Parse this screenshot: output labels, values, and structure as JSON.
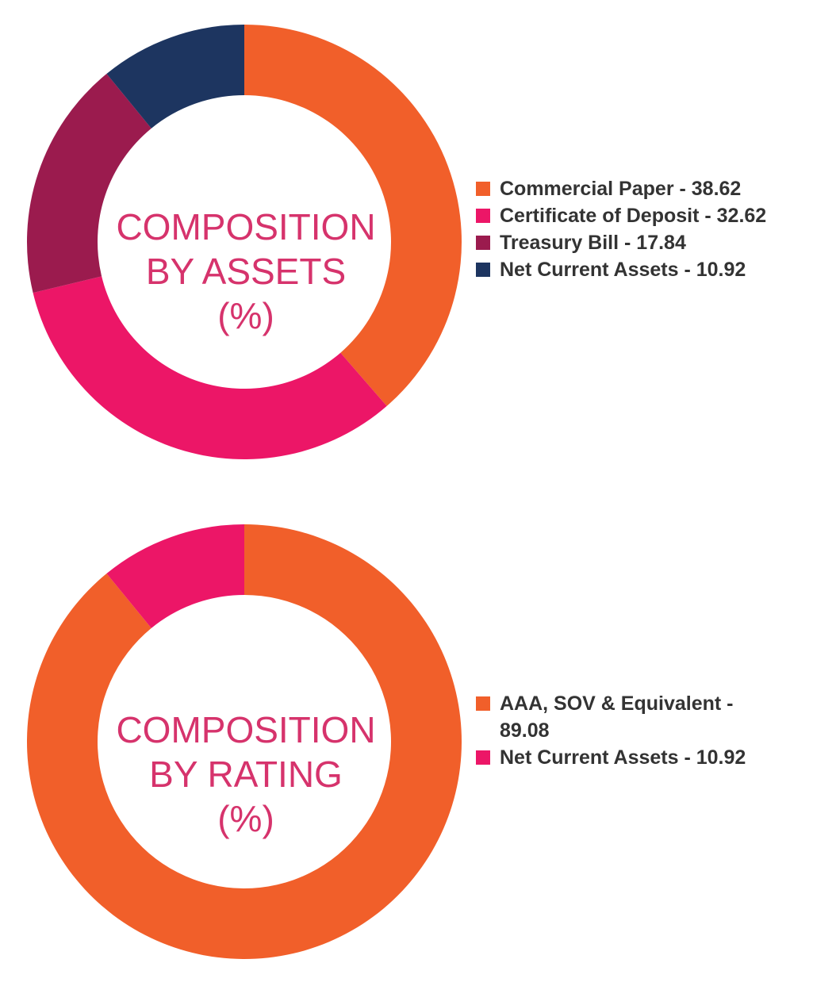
{
  "chart_data": [
    {
      "type": "pie",
      "title_lines": [
        "COMPOSITION",
        "BY ASSETS",
        "(%)"
      ],
      "categories": [
        "Commercial Paper",
        "Certificate of Deposit",
        "Treasury Bill",
        "Net Current Assets"
      ],
      "values": [
        38.62,
        32.62,
        17.84,
        10.92
      ],
      "colors": [
        "#f15f2a",
        "#ec1667",
        "#9b1b4e",
        "#1d3560"
      ],
      "legend_labels": [
        "Commercial Paper - 38.62",
        "Certificate of Deposit - 32.62",
        "Treasury Bill - 17.84",
        "Net Current Assets - 10.92"
      ],
      "legend_placement": "right"
    },
    {
      "type": "pie",
      "title_lines": [
        "COMPOSITION",
        "BY RATING",
        "(%)"
      ],
      "categories": [
        "AAA, SOV & Equivalent",
        "Net Current Assets"
      ],
      "values": [
        89.08,
        10.92
      ],
      "colors": [
        "#f15f2a",
        "#ec1667"
      ],
      "legend_labels": [
        "AAA, SOV & Equivalent - 89.08",
        "Net Current Assets - 10.92"
      ],
      "legend_placement": "right"
    }
  ]
}
